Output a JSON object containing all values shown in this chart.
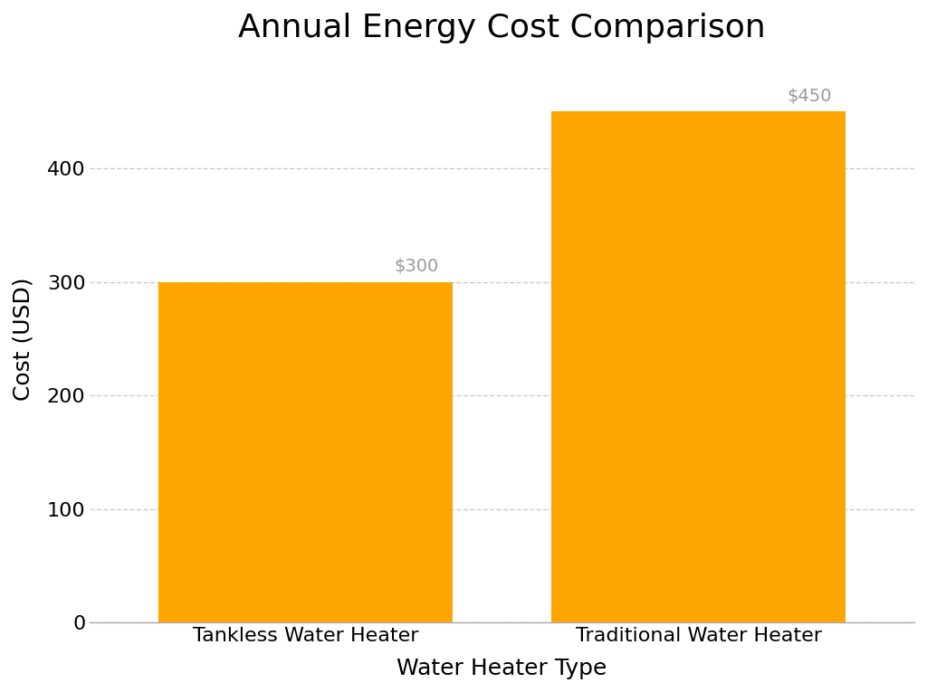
{
  "title": "Annual Energy Cost Comparison",
  "xlabel": "Water Heater Type",
  "ylabel": "Cost (USD)",
  "categories": [
    "Tankless Water Heater",
    "Traditional Water Heater"
  ],
  "values": [
    300,
    450
  ],
  "bar_color": "#FFA500",
  "bar_edgecolor": "none",
  "labels": [
    "$300",
    "$450"
  ],
  "ylim": [
    0,
    500
  ],
  "yticks": [
    0,
    100,
    200,
    300,
    400
  ],
  "grid_color": "#CCCCCC",
  "grid_linestyle": "--",
  "background_color": "#FFFFFF",
  "title_fontsize": 26,
  "axis_label_fontsize": 18,
  "tick_fontsize": 16,
  "annotation_fontsize": 14,
  "annotation_color": "#999999",
  "bar_width": 0.75,
  "xlim": [
    -0.55,
    1.55
  ]
}
